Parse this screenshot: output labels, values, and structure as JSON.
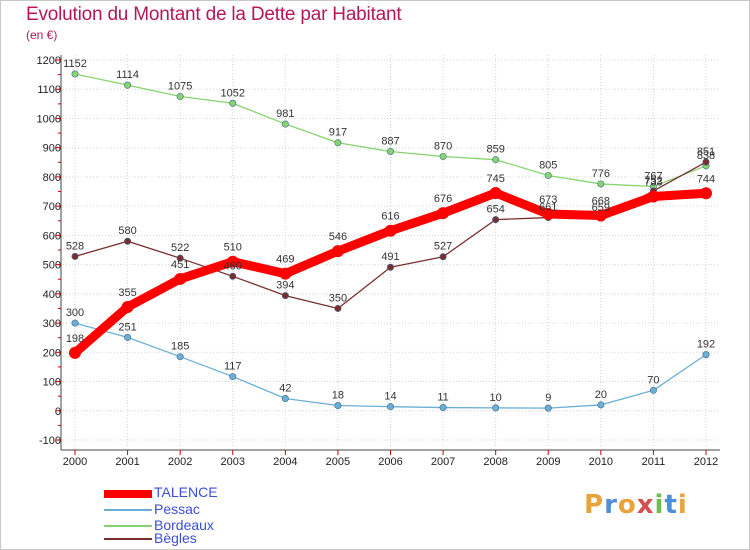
{
  "title": "Evolution du Montant de la Dette par Habitant",
  "subtitle": "(en €)",
  "chart_data": {
    "type": "line",
    "title": "Evolution du Montant de la Dette par Habitant",
    "ylabel": "(en €)",
    "x": [
      "2000",
      "2001",
      "2002",
      "2003",
      "2004",
      "2005",
      "2006",
      "2007",
      "2008",
      "2009",
      "2010",
      "2011",
      "2012"
    ],
    "ylim": [
      -100,
      1200
    ],
    "yticks": [
      -100,
      0,
      100,
      200,
      300,
      400,
      500,
      600,
      700,
      800,
      900,
      1000,
      1100,
      1200
    ],
    "grid": true,
    "legend_position": "bottom-left",
    "series": [
      {
        "name": "TALENCE",
        "color": "#ff0000",
        "values": [
          198,
          355,
          451,
          510,
          469,
          546,
          616,
          676,
          745,
          673,
          668,
          733,
          744
        ],
        "labels": [
          "198",
          "355",
          "451",
          "510",
          "469",
          "546",
          "616",
          "676",
          "745",
          "673",
          "668",
          "733",
          "744"
        ]
      },
      {
        "name": "Pessac",
        "color": "#6baed6",
        "values": [
          300,
          251,
          185,
          117,
          42,
          18,
          14,
          11,
          10,
          9,
          20,
          70,
          192
        ],
        "labels": [
          "300",
          "251",
          "185",
          "117",
          "42",
          "18",
          "14",
          "11",
          "10",
          "9",
          "20",
          "70",
          "192"
        ]
      },
      {
        "name": "Bordeaux",
        "color": "#88d470",
        "values": [
          1152,
          1114,
          1075,
          1052,
          981,
          917,
          887,
          870,
          859,
          805,
          776,
          767,
          838
        ],
        "labels": [
          "1152",
          "1114",
          "1075",
          "1052",
          "981",
          "917",
          "887",
          "870",
          "859",
          "805",
          "776",
          "767",
          "838"
        ]
      },
      {
        "name": "Bègles",
        "color": "#7a2e2e",
        "values": [
          528,
          580,
          522,
          460,
          394,
          350,
          491,
          527,
          654,
          661,
          659,
          752,
          851
        ],
        "labels": [
          "528",
          "580",
          "522",
          "460",
          "394",
          "350",
          "491",
          "527",
          "654",
          "661",
          "659",
          "752",
          "851"
        ]
      }
    ]
  },
  "legend": [
    "TALENCE",
    "Pessac",
    "Bordeaux",
    "Bègles"
  ],
  "logo": {
    "text": "Proxiti",
    "letters": [
      "P",
      "r",
      "o",
      "x",
      "i",
      "t",
      "i"
    ],
    "colors": [
      "#e8a33b",
      "#4f8fd6",
      "#e8a33b",
      "#d64f4f",
      "#6cbf4a",
      "#4f8fd6",
      "#e8a33b"
    ]
  }
}
